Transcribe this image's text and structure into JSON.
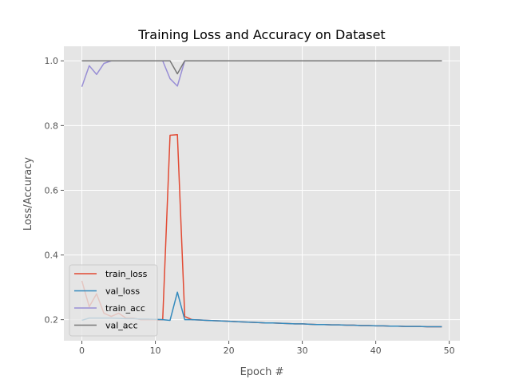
{
  "chart_data": {
    "type": "line",
    "title": "Training Loss and Accuracy on Dataset",
    "xlabel": "Epoch #",
    "ylabel": "Loss/Accuracy",
    "xlim": [
      -2.45,
      51.45
    ],
    "ylim": [
      0.135,
      1.045
    ],
    "xticks": [
      0,
      10,
      20,
      30,
      40,
      50
    ],
    "yticks": [
      0.2,
      0.4,
      0.6,
      0.8,
      1.0
    ],
    "ytick_labels": [
      "0.2",
      "0.4",
      "0.6",
      "0.8",
      "1.0"
    ],
    "grid": true,
    "legend_position": "lower-left",
    "x": [
      0,
      1,
      2,
      3,
      4,
      5,
      6,
      7,
      8,
      9,
      10,
      11,
      12,
      13,
      14,
      15,
      16,
      17,
      18,
      19,
      20,
      21,
      22,
      23,
      24,
      25,
      26,
      27,
      28,
      29,
      30,
      31,
      32,
      33,
      34,
      35,
      36,
      37,
      38,
      39,
      40,
      41,
      42,
      43,
      44,
      45,
      46,
      47,
      48,
      49
    ],
    "series": [
      {
        "name": "train_loss",
        "color": "#E24A33",
        "values": [
          0.32,
          0.24,
          0.28,
          0.22,
          0.21,
          0.22,
          0.205,
          0.205,
          0.2,
          0.2,
          0.2,
          0.2,
          0.77,
          0.772,
          0.21,
          0.2,
          0.199,
          0.198,
          0.197,
          0.196,
          0.195,
          0.194,
          0.193,
          0.192,
          0.191,
          0.19,
          0.19,
          0.189,
          0.188,
          0.187,
          0.187,
          0.186,
          0.185,
          0.185,
          0.184,
          0.184,
          0.183,
          0.183,
          0.182,
          0.182,
          0.181,
          0.181,
          0.18,
          0.18,
          0.179,
          0.179,
          0.179,
          0.178,
          0.178,
          0.178
        ]
      },
      {
        "name": "val_loss",
        "color": "#348ABD",
        "values": [
          0.198,
          0.205,
          0.205,
          0.205,
          0.205,
          0.204,
          0.203,
          0.203,
          0.202,
          0.202,
          0.201,
          0.2,
          0.198,
          0.285,
          0.2,
          0.2,
          0.199,
          0.198,
          0.197,
          0.196,
          0.195,
          0.194,
          0.193,
          0.192,
          0.191,
          0.19,
          0.19,
          0.189,
          0.188,
          0.187,
          0.187,
          0.186,
          0.185,
          0.185,
          0.184,
          0.184,
          0.183,
          0.183,
          0.182,
          0.182,
          0.181,
          0.181,
          0.18,
          0.18,
          0.179,
          0.179,
          0.179,
          0.178,
          0.178,
          0.178
        ]
      },
      {
        "name": "train_acc",
        "color": "#988ED5",
        "values": [
          0.92,
          0.985,
          0.958,
          0.992,
          1.0,
          1.0,
          1.0,
          1.0,
          1.0,
          1.0,
          1.0,
          1.0,
          0.945,
          0.922,
          1.0,
          1.0,
          1.0,
          1.0,
          1.0,
          1.0,
          1.0,
          1.0,
          1.0,
          1.0,
          1.0,
          1.0,
          1.0,
          1.0,
          1.0,
          1.0,
          1.0,
          1.0,
          1.0,
          1.0,
          1.0,
          1.0,
          1.0,
          1.0,
          1.0,
          1.0,
          1.0,
          1.0,
          1.0,
          1.0,
          1.0,
          1.0,
          1.0,
          1.0,
          1.0,
          1.0
        ]
      },
      {
        "name": "val_acc",
        "color": "#777777",
        "values": [
          1.0,
          1.0,
          1.0,
          1.0,
          1.0,
          1.0,
          1.0,
          1.0,
          1.0,
          1.0,
          1.0,
          1.0,
          1.0,
          0.96,
          1.0,
          1.0,
          1.0,
          1.0,
          1.0,
          1.0,
          1.0,
          1.0,
          1.0,
          1.0,
          1.0,
          1.0,
          1.0,
          1.0,
          1.0,
          1.0,
          1.0,
          1.0,
          1.0,
          1.0,
          1.0,
          1.0,
          1.0,
          1.0,
          1.0,
          1.0,
          1.0,
          1.0,
          1.0,
          1.0,
          1.0,
          1.0,
          1.0,
          1.0,
          1.0,
          1.0
        ]
      }
    ]
  }
}
